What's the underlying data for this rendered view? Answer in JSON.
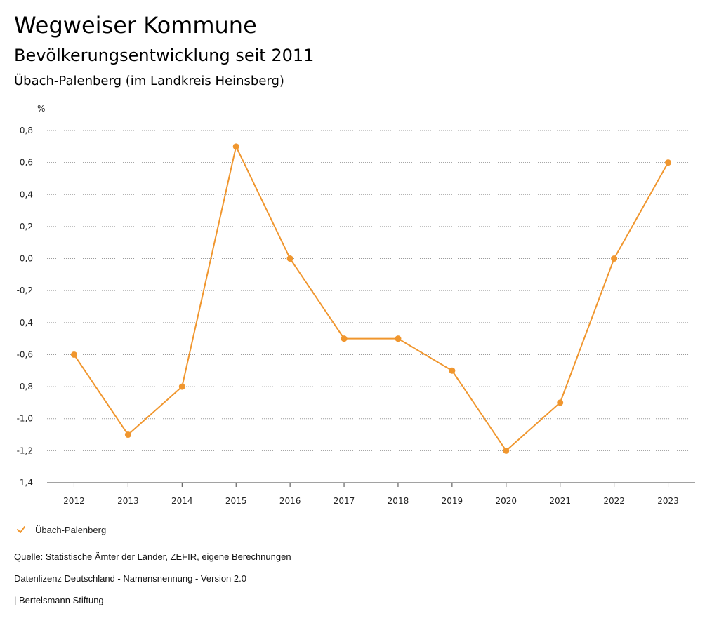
{
  "header": {
    "title": "Wegweiser Kommune",
    "subtitle": "Bevölkerungsentwicklung seit 2011",
    "region": "Übach-Palenberg (im Landkreis Heinsberg)"
  },
  "chart_data": {
    "type": "line",
    "ylabel": "%",
    "xlabel": "",
    "categories": [
      "2012",
      "2013",
      "2014",
      "2015",
      "2016",
      "2017",
      "2018",
      "2019",
      "2020",
      "2021",
      "2022",
      "2023"
    ],
    "series": [
      {
        "name": "Übach-Palenberg",
        "values": [
          -0.6,
          -1.1,
          -0.8,
          0.7,
          0.0,
          -0.5,
          -0.5,
          -0.7,
          -1.2,
          -0.9,
          0.0,
          0.6
        ],
        "color": "#f0962e"
      }
    ],
    "ylim": [
      -1.4,
      0.8
    ],
    "yticks": [
      0.8,
      0.6,
      0.4,
      0.2,
      0.0,
      -0.2,
      -0.4,
      -0.6,
      -0.8,
      -1.0,
      -1.2,
      -1.4
    ],
    "ytick_labels": [
      "0,8",
      "0,6",
      "0,4",
      "0,2",
      "0,0",
      "-0,2",
      "-0,4",
      "-0,6",
      "-0,8",
      "-1,0",
      "-1,2",
      "-1,4"
    ],
    "grid": "horizontal dotted",
    "legend_position": "bottom-left"
  },
  "legend": {
    "label": "Übach-Palenberg"
  },
  "footer": {
    "source": "Quelle: Statistische Ämter der Länder, ZEFIR, eigene Berechnungen",
    "license": "Datenlizenz Deutschland - Namensnennung - Version 2.0",
    "publisher": "| Bertelsmann Stiftung"
  }
}
